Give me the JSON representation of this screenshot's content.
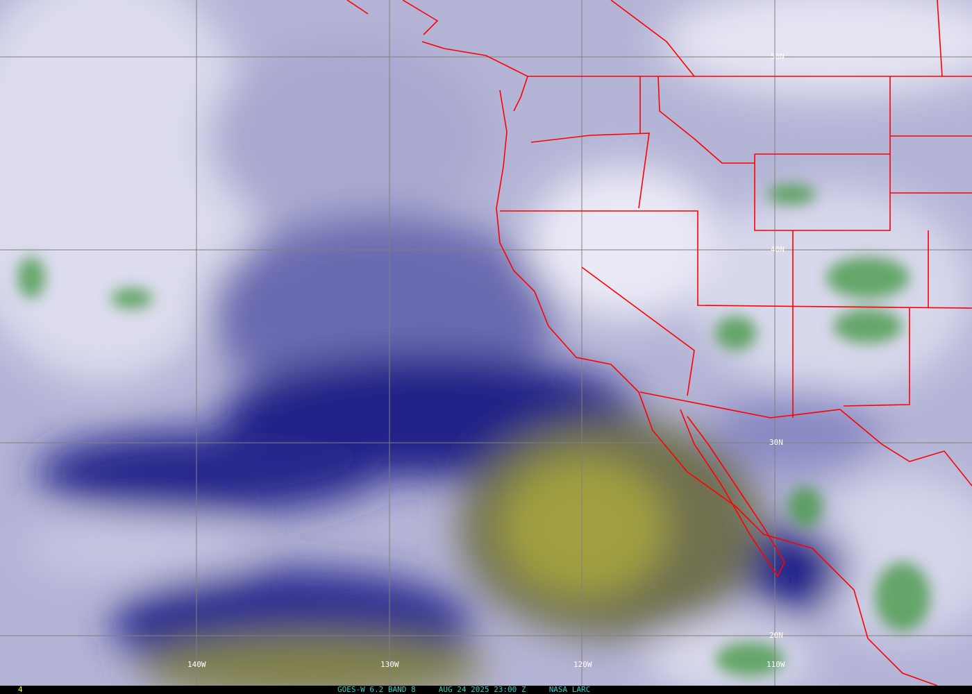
{
  "product": {
    "satellite": "GOES-W 6.2 BAND 8",
    "datetime": "AUG 24 2025 23:00 Z",
    "source": "NASA LARC",
    "frame_number": "4"
  },
  "grid": {
    "latitude_labels": [
      "50N",
      "40N",
      "30N",
      "20N"
    ],
    "longitude_labels": [
      "140W",
      "130W",
      "120W",
      "110W"
    ],
    "line_color": "#808080"
  },
  "colors": {
    "boundaries": "#ff0000",
    "dry_air": "#1a1a80",
    "very_dry_air": "#8c8c3c",
    "moist_air": "#e8e8f4",
    "cold_cloud_tops": "#3c8c3c"
  }
}
